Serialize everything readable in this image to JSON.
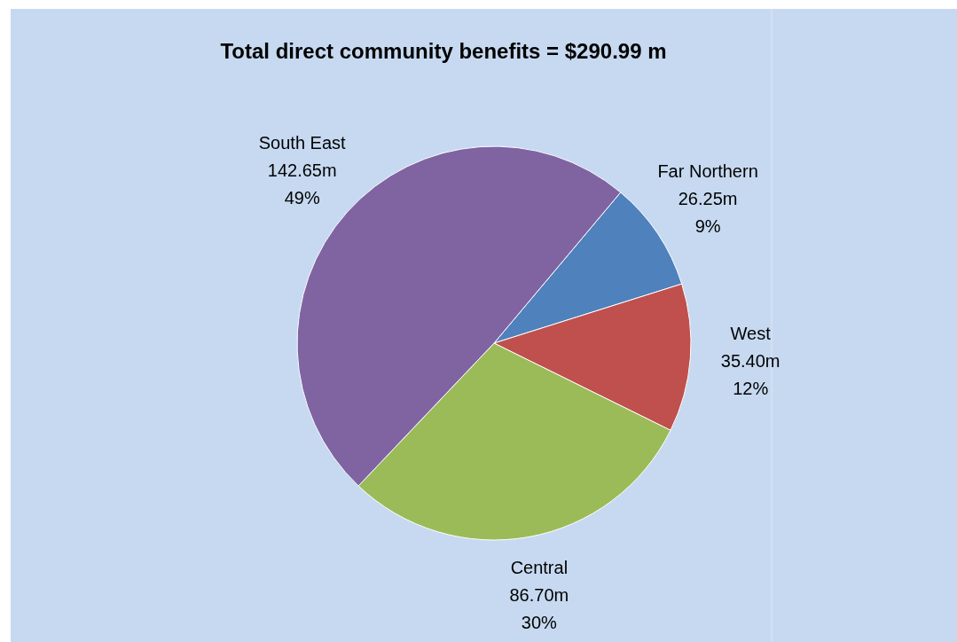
{
  "chart_data": {
    "type": "pie",
    "title": "Total direct community benefits = $290.99 m",
    "categories": [
      "Far Northern",
      "West",
      "Central",
      "South East"
    ],
    "values": [
      26.25,
      35.4,
      86.7,
      142.65
    ],
    "value_labels": [
      "26.25m",
      "35.40m",
      "86.70m",
      "142.65m"
    ],
    "annotations": [
      "9%",
      "12%",
      "30%",
      "49%"
    ],
    "colors": [
      "#4f81bd",
      "#c0504d",
      "#9bbb59",
      "#8064a2"
    ],
    "legend": false
  }
}
